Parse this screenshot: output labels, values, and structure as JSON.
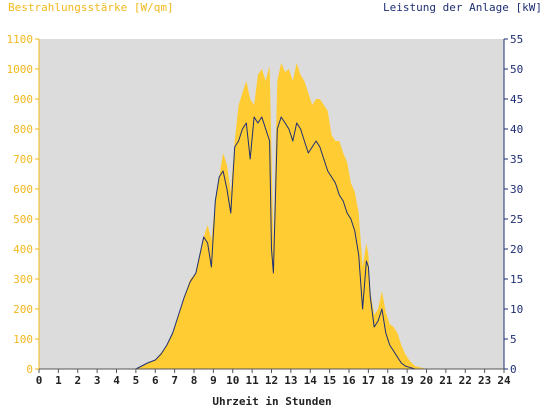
{
  "chart_data": {
    "type": "area",
    "title_left": "Bestrahlungsstärke [W/qm]",
    "title_right": "Leistung der Anlage [kW]",
    "xlabel": "Uhrzeit in Stunden",
    "x_ticks": [
      "0",
      "1",
      "2",
      "3",
      "4",
      "5",
      "6",
      "7",
      "8",
      "9",
      "10",
      "11",
      "12",
      "13",
      "14",
      "15",
      "16",
      "17",
      "18",
      "19",
      "20",
      "21",
      "22",
      "23",
      "24"
    ],
    "xlim": [
      0,
      24
    ],
    "y_left_ticks": [
      "0",
      "100",
      "200",
      "300",
      "400",
      "500",
      "600",
      "700",
      "800",
      "900",
      "1000",
      "1100"
    ],
    "y_left_lim": [
      0,
      1100
    ],
    "y_right_ticks": [
      "0",
      "5",
      "10",
      "15",
      "20",
      "25",
      "30",
      "35",
      "40",
      "45",
      "50",
      "55"
    ],
    "y_right_lim": [
      0,
      55
    ],
    "grid": false,
    "colors": {
      "irradiance_fill": "#ffcc33",
      "power_line": "#1f2f73",
      "plot_background": "#dcdcdc",
      "left_axis": "#f2b81d",
      "right_axis": "#1f2f73"
    },
    "series": [
      {
        "axis": "left",
        "x": [
          0,
          5.0,
          5.3,
          5.6,
          6.0,
          6.3,
          6.6,
          6.9,
          7.2,
          7.5,
          7.8,
          8.1,
          8.3,
          8.5,
          8.7,
          8.9,
          9.1,
          9.3,
          9.5,
          9.7,
          9.9,
          10.1,
          10.3,
          10.5,
          10.7,
          10.9,
          11.1,
          11.3,
          11.5,
          11.7,
          11.9,
          12.0,
          12.1,
          12.3,
          12.5,
          12.7,
          12.9,
          13.1,
          13.3,
          13.5,
          13.7,
          13.9,
          14.1,
          14.3,
          14.5,
          14.7,
          14.9,
          15.1,
          15.3,
          15.5,
          15.7,
          15.9,
          16.1,
          16.3,
          16.5,
          16.7,
          16.9,
          17.0,
          17.1,
          17.3,
          17.5,
          17.7,
          17.9,
          18.1,
          18.3,
          18.5,
          18.7,
          18.9,
          19.1,
          19.4,
          19.7,
          20.0,
          20.3,
          20.6,
          24
        ],
        "values": [
          0,
          0,
          10,
          20,
          30,
          55,
          80,
          120,
          180,
          240,
          300,
          320,
          380,
          440,
          480,
          430,
          560,
          640,
          720,
          680,
          590,
          760,
          880,
          920,
          960,
          900,
          880,
          980,
          1000,
          960,
          1010,
          720,
          420,
          960,
          1020,
          990,
          1000,
          960,
          1020,
          980,
          960,
          920,
          880,
          900,
          900,
          880,
          860,
          780,
          760,
          760,
          720,
          690,
          620,
          590,
          520,
          340,
          420,
          380,
          260,
          180,
          200,
          260,
          190,
          150,
          140,
          120,
          80,
          50,
          30,
          10,
          5,
          0,
          0,
          0,
          0
        ]
      },
      {
        "axis": "right",
        "x": [
          0,
          5.0,
          5.3,
          5.6,
          6.0,
          6.3,
          6.6,
          6.9,
          7.2,
          7.5,
          7.8,
          8.1,
          8.3,
          8.5,
          8.7,
          8.9,
          9.1,
          9.3,
          9.5,
          9.7,
          9.9,
          10.1,
          10.3,
          10.5,
          10.7,
          10.9,
          11.1,
          11.3,
          11.5,
          11.7,
          11.9,
          12.0,
          12.1,
          12.3,
          12.5,
          12.7,
          12.9,
          13.1,
          13.3,
          13.5,
          13.7,
          13.9,
          14.1,
          14.3,
          14.5,
          14.7,
          14.9,
          15.1,
          15.3,
          15.5,
          15.7,
          15.9,
          16.1,
          16.3,
          16.5,
          16.7,
          16.9,
          17.0,
          17.1,
          17.3,
          17.5,
          17.7,
          17.9,
          18.1,
          18.3,
          18.5,
          18.7,
          18.9,
          19.1,
          19.4,
          19.7,
          20.0,
          20.3,
          20.6,
          24
        ],
        "values": [
          0,
          0,
          0.5,
          1.0,
          1.5,
          2.5,
          4.0,
          6.0,
          9.0,
          12.0,
          14.5,
          16.0,
          19.0,
          22.0,
          21.0,
          17.0,
          28.0,
          32.0,
          33.0,
          30.0,
          26.0,
          37.0,
          38.0,
          40.0,
          41.0,
          35.0,
          42.0,
          41.0,
          42.0,
          40.0,
          38.0,
          20.0,
          16.0,
          40.0,
          42.0,
          41.0,
          40.0,
          38.0,
          41.0,
          40.0,
          38.0,
          36.0,
          37.0,
          38.0,
          37.0,
          35.0,
          33.0,
          32.0,
          31.0,
          29.0,
          28.0,
          26.0,
          25.0,
          23.0,
          19.0,
          10.0,
          18.0,
          17.0,
          12.0,
          7.0,
          8.0,
          10.0,
          6.0,
          4.0,
          3.0,
          2.0,
          1.0,
          0.5,
          0.3,
          0,
          0,
          0,
          0,
          0,
          0
        ]
      }
    ]
  }
}
